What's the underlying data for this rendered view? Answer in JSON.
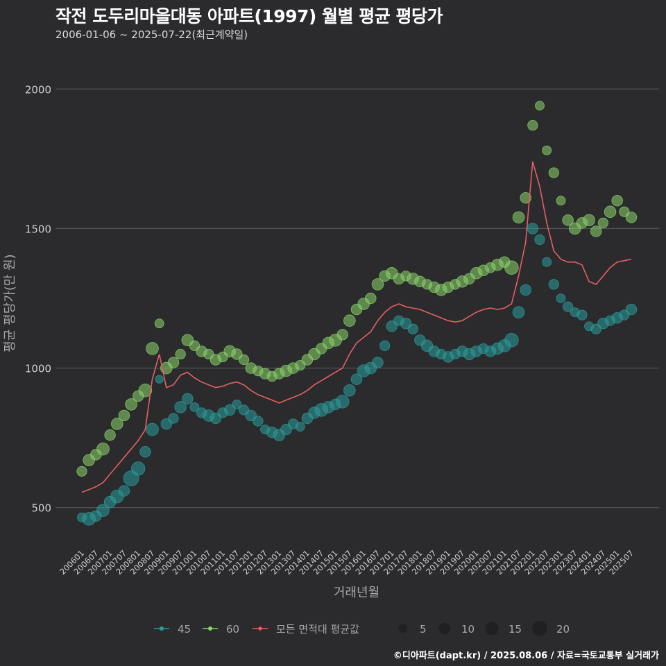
{
  "chart_data": {
    "type": "scatter",
    "title": "작전 도두리마을대동 아파트(1997) 월별 평균 평당가",
    "subtitle": "2006-01-06 ~ 2025-07-22(최근계약일)",
    "xlabel": "거래년월",
    "ylabel": "평균 평당가(만 원)",
    "credit": "©디아파트(dapt.kr) / 2025.08.06 / 자료=국토교통부 실거래가",
    "x_range": [
      "2006-01",
      "2025-07"
    ],
    "ylim": [
      380,
      2120
    ],
    "yticks": [
      500,
      1000,
      1500,
      2000
    ],
    "xticks": [
      "200601",
      "200607",
      "200701",
      "200707",
      "200801",
      "200807",
      "200901",
      "200907",
      "201001",
      "201007",
      "201101",
      "201107",
      "201201",
      "201207",
      "201301",
      "201307",
      "201401",
      "201407",
      "201501",
      "201507",
      "201601",
      "201607",
      "201701",
      "201707",
      "201801",
      "201807",
      "201901",
      "201907",
      "202001",
      "202007",
      "202101",
      "202107",
      "202201",
      "202207",
      "202301",
      "202307",
      "202401",
      "202407",
      "202501",
      "202507"
    ],
    "grid": true,
    "legend_position": "bottom",
    "legend": {
      "series": [
        {
          "name": "45",
          "color": "#2a9d9b"
        },
        {
          "name": "60",
          "color": "#8bd46a"
        },
        {
          "name": "모든 면적대 평균값",
          "color": "#e55f62"
        }
      ],
      "sizes": [
        5,
        10,
        15,
        20
      ]
    },
    "series": [
      {
        "name": "45",
        "type": "scatter",
        "color": "#2a9d9b",
        "points": [
          [
            "2006-01",
            465,
            3
          ],
          [
            "2006-04",
            460,
            8
          ],
          [
            "2006-07",
            470,
            5
          ],
          [
            "2006-10",
            490,
            7
          ],
          [
            "2007-01",
            520,
            6
          ],
          [
            "2007-04",
            540,
            8
          ],
          [
            "2007-07",
            560,
            5
          ],
          [
            "2007-10",
            605,
            12
          ],
          [
            "2008-01",
            640,
            9
          ],
          [
            "2008-04",
            700,
            5
          ],
          [
            "2008-07",
            780,
            7
          ],
          [
            "2008-10",
            960,
            2
          ],
          [
            "2009-01",
            800,
            5
          ],
          [
            "2009-04",
            820,
            4
          ],
          [
            "2009-07",
            860,
            6
          ],
          [
            "2009-10",
            890,
            5
          ],
          [
            "2010-01",
            860,
            3
          ],
          [
            "2010-04",
            840,
            4
          ],
          [
            "2010-07",
            830,
            6
          ],
          [
            "2010-10",
            820,
            5
          ],
          [
            "2011-01",
            840,
            4
          ],
          [
            "2011-04",
            850,
            5
          ],
          [
            "2011-07",
            870,
            3
          ],
          [
            "2011-10",
            850,
            4
          ],
          [
            "2012-01",
            830,
            5
          ],
          [
            "2012-04",
            810,
            4
          ],
          [
            "2012-07",
            780,
            3
          ],
          [
            "2012-10",
            770,
            5
          ],
          [
            "2013-01",
            760,
            6
          ],
          [
            "2013-04",
            780,
            5
          ],
          [
            "2013-07",
            800,
            4
          ],
          [
            "2013-10",
            790,
            3
          ],
          [
            "2014-01",
            820,
            5
          ],
          [
            "2014-04",
            840,
            6
          ],
          [
            "2014-07",
            850,
            8
          ],
          [
            "2014-10",
            860,
            6
          ],
          [
            "2015-01",
            870,
            5
          ],
          [
            "2015-04",
            880,
            8
          ],
          [
            "2015-07",
            920,
            6
          ],
          [
            "2015-10",
            960,
            5
          ],
          [
            "2016-01",
            990,
            7
          ],
          [
            "2016-04",
            1000,
            6
          ],
          [
            "2016-07",
            1020,
            5
          ],
          [
            "2016-10",
            1080,
            4
          ],
          [
            "2017-01",
            1150,
            5
          ],
          [
            "2017-04",
            1170,
            4
          ],
          [
            "2017-07",
            1160,
            5
          ],
          [
            "2017-10",
            1140,
            4
          ],
          [
            "2018-01",
            1100,
            5
          ],
          [
            "2018-04",
            1080,
            6
          ],
          [
            "2018-07",
            1060,
            5
          ],
          [
            "2018-10",
            1050,
            4
          ],
          [
            "2019-01",
            1040,
            5
          ],
          [
            "2019-04",
            1050,
            4
          ],
          [
            "2019-07",
            1060,
            5
          ],
          [
            "2019-10",
            1050,
            6
          ],
          [
            "2020-01",
            1060,
            5
          ],
          [
            "2020-04",
            1070,
            4
          ],
          [
            "2020-07",
            1060,
            5
          ],
          [
            "2020-10",
            1070,
            6
          ],
          [
            "2021-01",
            1080,
            7
          ],
          [
            "2021-04",
            1100,
            9
          ],
          [
            "2021-07",
            1200,
            6
          ],
          [
            "2021-10",
            1280,
            5
          ],
          [
            "2022-01",
            1500,
            5
          ],
          [
            "2022-04",
            1460,
            4
          ],
          [
            "2022-07",
            1380,
            3
          ],
          [
            "2022-10",
            1300,
            4
          ],
          [
            "2023-01",
            1250,
            3
          ],
          [
            "2023-04",
            1220,
            4
          ],
          [
            "2023-07",
            1200,
            3
          ],
          [
            "2023-10",
            1190,
            4
          ],
          [
            "2024-01",
            1150,
            3
          ],
          [
            "2024-04",
            1140,
            4
          ],
          [
            "2024-07",
            1160,
            5
          ],
          [
            "2024-10",
            1170,
            4
          ],
          [
            "2025-01",
            1180,
            5
          ],
          [
            "2025-04",
            1190,
            4
          ],
          [
            "2025-07",
            1210,
            5
          ]
        ]
      },
      {
        "name": "60",
        "type": "scatter",
        "color": "#8bd46a",
        "points": [
          [
            "2006-01",
            630,
            4
          ],
          [
            "2006-04",
            670,
            6
          ],
          [
            "2006-07",
            690,
            5
          ],
          [
            "2006-10",
            710,
            7
          ],
          [
            "2007-01",
            760,
            5
          ],
          [
            "2007-04",
            800,
            6
          ],
          [
            "2007-07",
            830,
            5
          ],
          [
            "2007-10",
            870,
            6
          ],
          [
            "2008-01",
            900,
            5
          ],
          [
            "2008-04",
            920,
            8
          ],
          [
            "2008-07",
            1070,
            7
          ],
          [
            "2008-10",
            1160,
            3
          ],
          [
            "2009-01",
            1000,
            6
          ],
          [
            "2009-04",
            1020,
            5
          ],
          [
            "2009-07",
            1050,
            4
          ],
          [
            "2009-10",
            1100,
            6
          ],
          [
            "2010-01",
            1080,
            4
          ],
          [
            "2010-04",
            1060,
            5
          ],
          [
            "2010-07",
            1050,
            4
          ],
          [
            "2010-10",
            1030,
            5
          ],
          [
            "2011-01",
            1040,
            4
          ],
          [
            "2011-04",
            1060,
            6
          ],
          [
            "2011-07",
            1050,
            5
          ],
          [
            "2011-10",
            1030,
            4
          ],
          [
            "2012-01",
            1000,
            5
          ],
          [
            "2012-04",
            990,
            4
          ],
          [
            "2012-07",
            980,
            5
          ],
          [
            "2012-10",
            970,
            4
          ],
          [
            "2013-01",
            980,
            5
          ],
          [
            "2013-04",
            990,
            6
          ],
          [
            "2013-07",
            1000,
            5
          ],
          [
            "2013-10",
            1010,
            4
          ],
          [
            "2014-01",
            1030,
            5
          ],
          [
            "2014-04",
            1050,
            6
          ],
          [
            "2014-07",
            1070,
            5
          ],
          [
            "2014-10",
            1090,
            6
          ],
          [
            "2015-01",
            1100,
            7
          ],
          [
            "2015-04",
            1120,
            5
          ],
          [
            "2015-07",
            1170,
            6
          ],
          [
            "2015-10",
            1210,
            5
          ],
          [
            "2016-01",
            1230,
            6
          ],
          [
            "2016-04",
            1250,
            5
          ],
          [
            "2016-07",
            1300,
            6
          ],
          [
            "2016-10",
            1330,
            5
          ],
          [
            "2017-01",
            1340,
            6
          ],
          [
            "2017-04",
            1320,
            5
          ],
          [
            "2017-07",
            1330,
            4
          ],
          [
            "2017-10",
            1320,
            6
          ],
          [
            "2018-01",
            1310,
            5
          ],
          [
            "2018-04",
            1300,
            4
          ],
          [
            "2018-07",
            1290,
            5
          ],
          [
            "2018-10",
            1280,
            6
          ],
          [
            "2019-01",
            1290,
            5
          ],
          [
            "2019-04",
            1300,
            4
          ],
          [
            "2019-07",
            1310,
            6
          ],
          [
            "2019-10",
            1320,
            5
          ],
          [
            "2020-01",
            1340,
            6
          ],
          [
            "2020-04",
            1350,
            5
          ],
          [
            "2020-07",
            1360,
            4
          ],
          [
            "2020-10",
            1370,
            6
          ],
          [
            "2021-01",
            1380,
            5
          ],
          [
            "2021-04",
            1360,
            9
          ],
          [
            "2021-07",
            1540,
            6
          ],
          [
            "2021-10",
            1610,
            5
          ],
          [
            "2022-01",
            1870,
            4
          ],
          [
            "2022-04",
            1940,
            3
          ],
          [
            "2022-07",
            1780,
            3
          ],
          [
            "2022-10",
            1700,
            4
          ],
          [
            "2023-01",
            1600,
            3
          ],
          [
            "2023-04",
            1530,
            5
          ],
          [
            "2023-07",
            1500,
            6
          ],
          [
            "2023-10",
            1520,
            5
          ],
          [
            "2024-01",
            1530,
            6
          ],
          [
            "2024-04",
            1490,
            5
          ],
          [
            "2024-07",
            1520,
            4
          ],
          [
            "2024-10",
            1560,
            6
          ],
          [
            "2025-01",
            1600,
            5
          ],
          [
            "2025-04",
            1560,
            4
          ],
          [
            "2025-07",
            1540,
            5
          ]
        ]
      },
      {
        "name": "모든 면적대 평균값",
        "type": "line",
        "color": "#e55f62",
        "points": [
          [
            "2006-01",
            555
          ],
          [
            "2006-04",
            565
          ],
          [
            "2006-07",
            575
          ],
          [
            "2006-10",
            590
          ],
          [
            "2007-01",
            620
          ],
          [
            "2007-04",
            650
          ],
          [
            "2007-07",
            680
          ],
          [
            "2007-10",
            710
          ],
          [
            "2008-01",
            740
          ],
          [
            "2008-04",
            780
          ],
          [
            "2008-07",
            960
          ],
          [
            "2008-10",
            1050
          ],
          [
            "2009-01",
            930
          ],
          [
            "2009-04",
            940
          ],
          [
            "2009-07",
            975
          ],
          [
            "2009-10",
            985
          ],
          [
            "2010-01",
            965
          ],
          [
            "2010-04",
            950
          ],
          [
            "2010-07",
            940
          ],
          [
            "2010-10",
            930
          ],
          [
            "2011-01",
            935
          ],
          [
            "2011-04",
            945
          ],
          [
            "2011-07",
            950
          ],
          [
            "2011-10",
            940
          ],
          [
            "2012-01",
            920
          ],
          [
            "2012-04",
            905
          ],
          [
            "2012-07",
            895
          ],
          [
            "2012-10",
            885
          ],
          [
            "2013-01",
            875
          ],
          [
            "2013-04",
            885
          ],
          [
            "2013-07",
            895
          ],
          [
            "2013-10",
            905
          ],
          [
            "2014-01",
            920
          ],
          [
            "2014-04",
            940
          ],
          [
            "2014-07",
            955
          ],
          [
            "2014-10",
            970
          ],
          [
            "2015-01",
            985
          ],
          [
            "2015-04",
            1000
          ],
          [
            "2015-07",
            1050
          ],
          [
            "2015-10",
            1090
          ],
          [
            "2016-01",
            1110
          ],
          [
            "2016-04",
            1130
          ],
          [
            "2016-07",
            1170
          ],
          [
            "2016-10",
            1200
          ],
          [
            "2017-01",
            1220
          ],
          [
            "2017-04",
            1230
          ],
          [
            "2017-07",
            1220
          ],
          [
            "2017-10",
            1215
          ],
          [
            "2018-01",
            1210
          ],
          [
            "2018-04",
            1200
          ],
          [
            "2018-07",
            1190
          ],
          [
            "2018-10",
            1180
          ],
          [
            "2019-01",
            1170
          ],
          [
            "2019-04",
            1165
          ],
          [
            "2019-07",
            1170
          ],
          [
            "2019-10",
            1185
          ],
          [
            "2020-01",
            1200
          ],
          [
            "2020-04",
            1210
          ],
          [
            "2020-07",
            1215
          ],
          [
            "2020-10",
            1210
          ],
          [
            "2021-01",
            1215
          ],
          [
            "2021-04",
            1230
          ],
          [
            "2021-07",
            1330
          ],
          [
            "2021-10",
            1450
          ],
          [
            "2022-01",
            1740
          ],
          [
            "2022-04",
            1650
          ],
          [
            "2022-07",
            1520
          ],
          [
            "2022-10",
            1420
          ],
          [
            "2023-01",
            1390
          ],
          [
            "2023-04",
            1380
          ],
          [
            "2023-07",
            1380
          ],
          [
            "2023-10",
            1370
          ],
          [
            "2024-01",
            1310
          ],
          [
            "2024-04",
            1300
          ],
          [
            "2024-07",
            1330
          ],
          [
            "2024-10",
            1360
          ],
          [
            "2025-01",
            1380
          ],
          [
            "2025-04",
            1385
          ],
          [
            "2025-07",
            1390
          ]
        ]
      }
    ]
  }
}
